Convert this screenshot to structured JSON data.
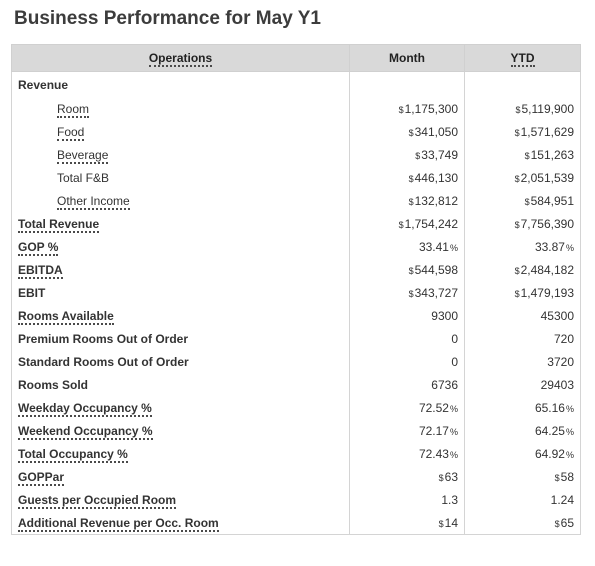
{
  "page": {
    "title": "Business Performance for May Y1"
  },
  "table": {
    "headers": {
      "operations": "Operations",
      "month": "Month",
      "ytd": "YTD"
    },
    "rows": [
      {
        "label": "Revenue",
        "month": "",
        "ytd": "",
        "bold": true,
        "sub": false,
        "link": false
      },
      {
        "label": "Room",
        "month": "1,175,300",
        "ytd": "5,119,900",
        "bold": false,
        "sub": true,
        "link": true,
        "prefix": "$"
      },
      {
        "label": "Food",
        "month": "341,050",
        "ytd": "1,571,629",
        "bold": false,
        "sub": true,
        "link": true,
        "prefix": "$"
      },
      {
        "label": "Beverage",
        "month": "33,749",
        "ytd": "151,263",
        "bold": false,
        "sub": true,
        "link": true,
        "prefix": "$"
      },
      {
        "label": "Total F&B",
        "month": "446,130",
        "ytd": "2,051,539",
        "bold": false,
        "sub": true,
        "link": false,
        "prefix": "$"
      },
      {
        "label": "Other Income",
        "month": "132,812",
        "ytd": "584,951",
        "bold": false,
        "sub": true,
        "link": true,
        "prefix": "$"
      },
      {
        "label": "Total Revenue",
        "month": "1,754,242",
        "ytd": "7,756,390",
        "bold": true,
        "sub": false,
        "link": true,
        "prefix": "$"
      },
      {
        "label": "GOP %",
        "month": "33.41",
        "ytd": "33.87",
        "bold": true,
        "sub": false,
        "link": true,
        "suffix": "%"
      },
      {
        "label": "EBITDA",
        "month": "544,598",
        "ytd": "2,484,182",
        "bold": true,
        "sub": false,
        "link": true,
        "prefix": "$"
      },
      {
        "label": "EBIT",
        "month": "343,727",
        "ytd": "1,479,193",
        "bold": true,
        "sub": false,
        "link": false,
        "prefix": "$"
      },
      {
        "label": "Rooms Available",
        "month": "9300",
        "ytd": "45300",
        "bold": true,
        "sub": false,
        "link": true
      },
      {
        "label": "Premium Rooms Out of Order",
        "month": "0",
        "ytd": "720",
        "bold": true,
        "sub": false,
        "link": false
      },
      {
        "label": "Standard Rooms Out of Order",
        "month": "0",
        "ytd": "3720",
        "bold": true,
        "sub": false,
        "link": false
      },
      {
        "label": "Rooms Sold",
        "month": "6736",
        "ytd": "29403",
        "bold": true,
        "sub": false,
        "link": false
      },
      {
        "label": "Weekday Occupancy %",
        "month": "72.52",
        "ytd": "65.16",
        "bold": true,
        "sub": false,
        "link": true,
        "suffix": "%"
      },
      {
        "label": "Weekend Occupancy %",
        "month": "72.17",
        "ytd": "64.25",
        "bold": true,
        "sub": false,
        "link": true,
        "suffix": "%"
      },
      {
        "label": "Total Occupancy %",
        "month": "72.43",
        "ytd": "64.92",
        "bold": true,
        "sub": false,
        "link": true,
        "suffix": "%"
      },
      {
        "label": "GOPPar",
        "month": "63",
        "ytd": "58",
        "bold": true,
        "sub": false,
        "link": true,
        "prefix": "$"
      },
      {
        "label": "Guests per Occupied Room",
        "month": "1.3",
        "ytd": "1.24",
        "bold": true,
        "sub": false,
        "link": true
      },
      {
        "label": "Additional Revenue per Occ. Room",
        "month": "14",
        "ytd": "65",
        "bold": true,
        "sub": false,
        "link": true,
        "prefix": "$"
      }
    ]
  }
}
